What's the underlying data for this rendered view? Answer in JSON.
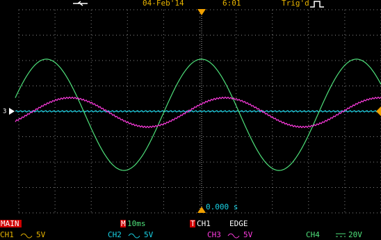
{
  "status_bar": {
    "date": "04-Feb'14",
    "time": "6:01",
    "trigger_status": "Trig'd"
  },
  "screen": {
    "ground_marker": "3",
    "time_offset": "0.000 s"
  },
  "footer": {
    "mode": "MAIN",
    "timebase": {
      "label": "M",
      "value": "10ms"
    },
    "trigger": {
      "label": "T",
      "source": "CH1",
      "type": "EDGE"
    },
    "channels": [
      {
        "name": "CH1",
        "scale": "5V"
      },
      {
        "name": "CH2",
        "scale": "5V"
      },
      {
        "name": "CH3",
        "scale": "5V"
      },
      {
        "name": "CH4",
        "scale": "20V"
      }
    ]
  }
}
